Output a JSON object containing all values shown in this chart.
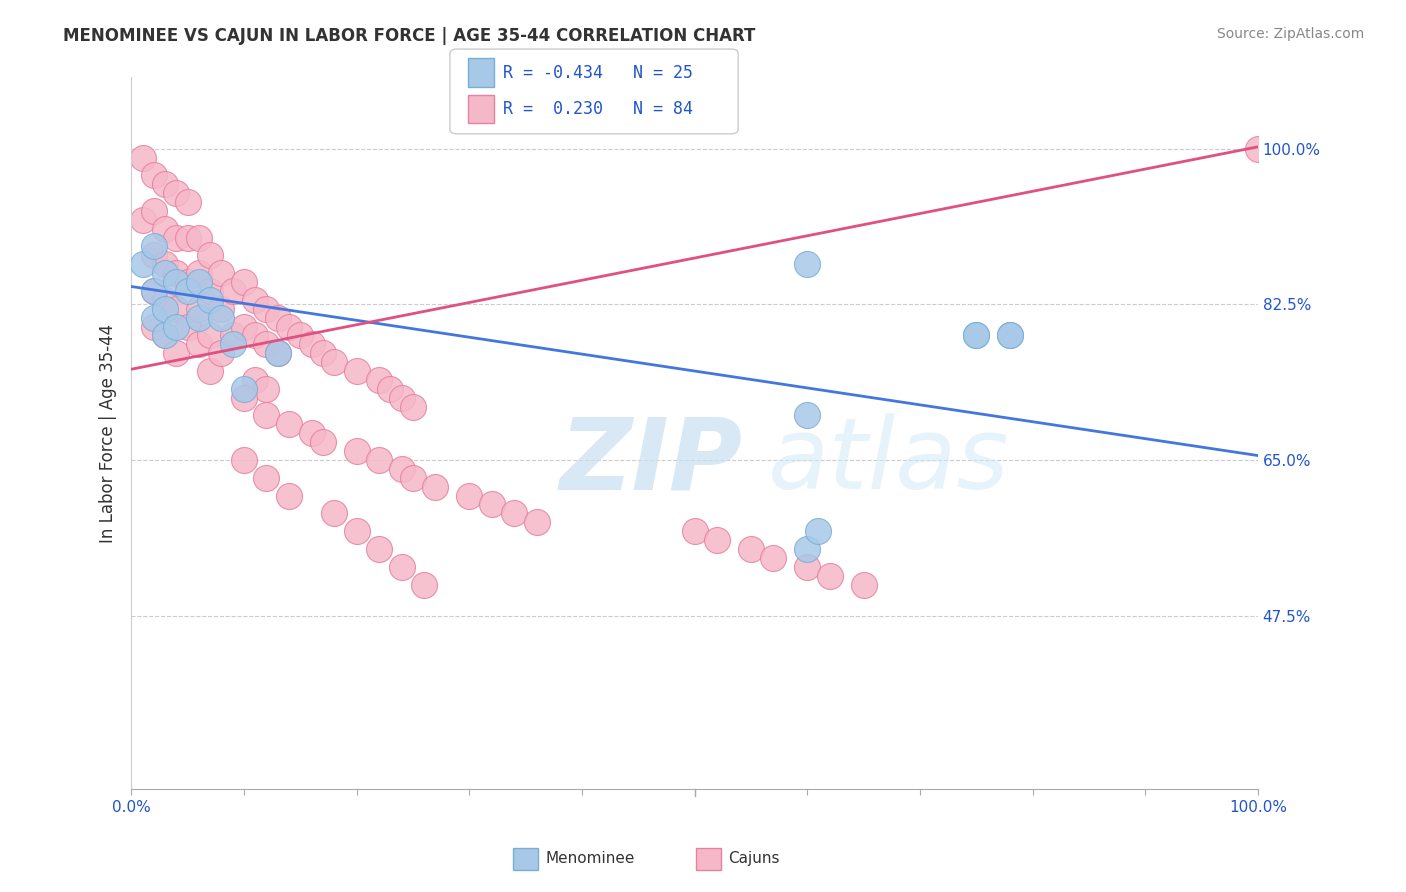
{
  "title": "MENOMINEE VS CAJUN IN LABOR FORCE | AGE 35-44 CORRELATION CHART",
  "source_text": "Source: ZipAtlas.com",
  "ylabel": "In Labor Force | Age 35-44",
  "xlim": [
    0.0,
    1.0
  ],
  "ylim": [
    0.28,
    1.08
  ],
  "ytick_positions": [
    0.475,
    0.65,
    0.825,
    1.0
  ],
  "ytick_labels": [
    "47.5%",
    "65.0%",
    "82.5%",
    "100.0%"
  ],
  "xtick_positions": [
    0.0,
    0.1,
    0.2,
    0.3,
    0.4,
    0.5,
    0.6,
    0.7,
    0.8,
    0.9,
    1.0
  ],
  "xtick_labels": [
    "0.0%",
    "",
    "",
    "",
    "",
    "",
    "",
    "",
    "",
    "",
    "100.0%"
  ],
  "menominee_color": "#a8c8e8",
  "cajun_color": "#f5b8c8",
  "menominee_edge": "#7aaed6",
  "cajun_edge": "#e880a0",
  "R_menominee": -0.434,
  "N_menominee": 25,
  "R_cajun": 0.23,
  "N_cajun": 84,
  "legend_R_color": "#2255cc",
  "watermark_zip": "ZIP",
  "watermark_atlas": "atlas",
  "background_color": "#ffffff",
  "grid_color": "#cccccc",
  "men_line_x": [
    0.0,
    1.0
  ],
  "men_line_y": [
    0.845,
    0.655
  ],
  "caj_line_x": [
    0.0,
    1.0
  ],
  "caj_line_y": [
    0.752,
    1.002
  ],
  "menominee_points_x": [
    0.01,
    0.02,
    0.02,
    0.02,
    0.03,
    0.03,
    0.03,
    0.04,
    0.04,
    0.05,
    0.06,
    0.06,
    0.07,
    0.08,
    0.09,
    0.1,
    0.13,
    0.6,
    0.75,
    0.78,
    0.6,
    0.6,
    0.75,
    0.78,
    0.61
  ],
  "menominee_points_y": [
    0.87,
    0.89,
    0.84,
    0.81,
    0.86,
    0.82,
    0.79,
    0.85,
    0.8,
    0.84,
    0.85,
    0.81,
    0.83,
    0.81,
    0.78,
    0.73,
    0.77,
    0.87,
    0.79,
    0.79,
    0.7,
    0.55,
    0.79,
    0.79,
    0.57
  ],
  "cajun_points_x": [
    0.01,
    0.01,
    0.02,
    0.02,
    0.02,
    0.02,
    0.02,
    0.03,
    0.03,
    0.03,
    0.03,
    0.03,
    0.04,
    0.04,
    0.04,
    0.04,
    0.04,
    0.05,
    0.05,
    0.05,
    0.05,
    0.06,
    0.06,
    0.06,
    0.06,
    0.07,
    0.07,
    0.07,
    0.07,
    0.08,
    0.08,
    0.08,
    0.09,
    0.09,
    0.1,
    0.1,
    0.11,
    0.11,
    0.11,
    0.12,
    0.12,
    0.12,
    0.13,
    0.13,
    0.14,
    0.15,
    0.16,
    0.17,
    0.18,
    0.2,
    0.22,
    0.23,
    0.24,
    0.25,
    0.1,
    0.12,
    0.14,
    0.16,
    0.17,
    0.2,
    0.22,
    0.24,
    0.25,
    0.27,
    0.3,
    0.32,
    0.34,
    0.36,
    0.5,
    0.52,
    0.55,
    0.57,
    0.6,
    0.62,
    0.65,
    0.1,
    0.12,
    0.14,
    0.18,
    0.2,
    0.22,
    0.24,
    0.26,
    1.0
  ],
  "cajun_points_y": [
    0.99,
    0.92,
    0.97,
    0.93,
    0.88,
    0.84,
    0.8,
    0.96,
    0.91,
    0.87,
    0.83,
    0.79,
    0.95,
    0.9,
    0.86,
    0.82,
    0.77,
    0.94,
    0.9,
    0.85,
    0.8,
    0.9,
    0.86,
    0.82,
    0.78,
    0.88,
    0.84,
    0.79,
    0.75,
    0.86,
    0.82,
    0.77,
    0.84,
    0.79,
    0.85,
    0.8,
    0.83,
    0.79,
    0.74,
    0.82,
    0.78,
    0.73,
    0.81,
    0.77,
    0.8,
    0.79,
    0.78,
    0.77,
    0.76,
    0.75,
    0.74,
    0.73,
    0.72,
    0.71,
    0.72,
    0.7,
    0.69,
    0.68,
    0.67,
    0.66,
    0.65,
    0.64,
    0.63,
    0.62,
    0.61,
    0.6,
    0.59,
    0.58,
    0.57,
    0.56,
    0.55,
    0.54,
    0.53,
    0.52,
    0.51,
    0.65,
    0.63,
    0.61,
    0.59,
    0.57,
    0.55,
    0.53,
    0.51,
    1.0
  ]
}
